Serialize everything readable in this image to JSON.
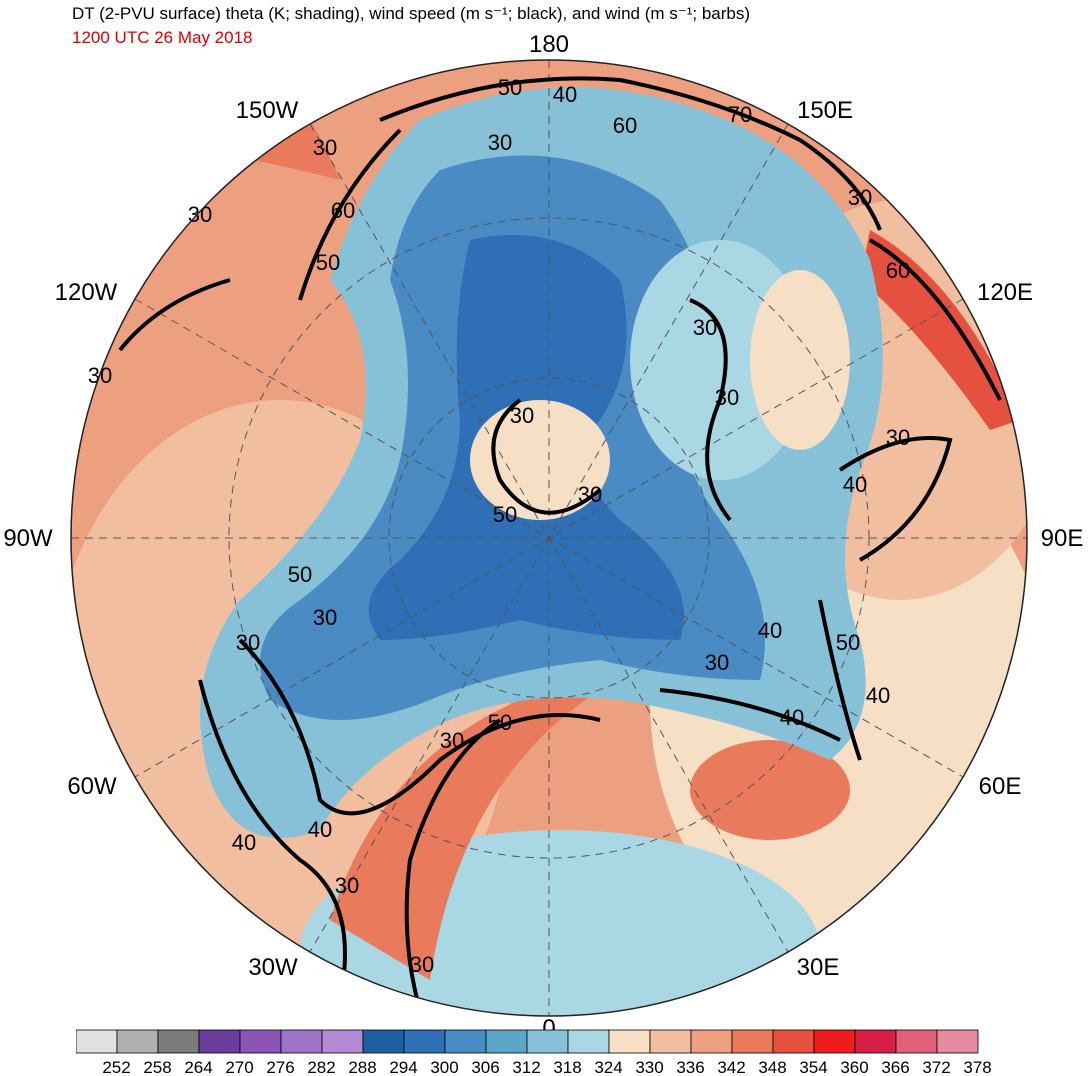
{
  "header": {
    "title": "DT (2-PVU surface) theta (K; shading), wind speed (m s⁻¹; black), and wind (m s⁻¹; barbs)",
    "valid_time": "1200 UTC 26 May 2018",
    "valid_time_color": "#e00000"
  },
  "map": {
    "projection": "north polar stereographic",
    "longitude_labels": [
      "180",
      "150E",
      "120E",
      "90E",
      "60E",
      "30E",
      "0",
      "30W",
      "60W",
      "90W",
      "120W",
      "150W"
    ],
    "contour_labels": [
      "50",
      "40",
      "60",
      "70",
      "30",
      "30",
      "60",
      "50",
      "30",
      "30",
      "30",
      "60",
      "30",
      "30",
      "30",
      "40",
      "30",
      "50",
      "30",
      "50",
      "30",
      "30",
      "30",
      "40",
      "50",
      "40",
      "40",
      "30",
      "50",
      "40",
      "40",
      "30",
      "30"
    ]
  },
  "colorbar": {
    "colors": [
      "#e0e0e0",
      "#b0b0b0",
      "#7c7c7c",
      "#6b3d9a",
      "#8a55b5",
      "#9c75c8",
      "#b28ad6",
      "#1f5fa6",
      "#2e6fb6",
      "#4a8bc4",
      "#5ea6c8",
      "#86c1d8",
      "#a9d8e4",
      "#f6dfc4",
      "#f1bfa0",
      "#eda080",
      "#e97a5c",
      "#e5503f",
      "#ee1c1c",
      "#d91e48",
      "#e0607a",
      "#e88aa0"
    ],
    "ticks": [
      "252",
      "258",
      "264",
      "270",
      "276",
      "282",
      "288",
      "294",
      "300",
      "306",
      "312",
      "318",
      "324",
      "330",
      "336",
      "342",
      "348",
      "354",
      "360",
      "366",
      "372",
      "378"
    ]
  }
}
